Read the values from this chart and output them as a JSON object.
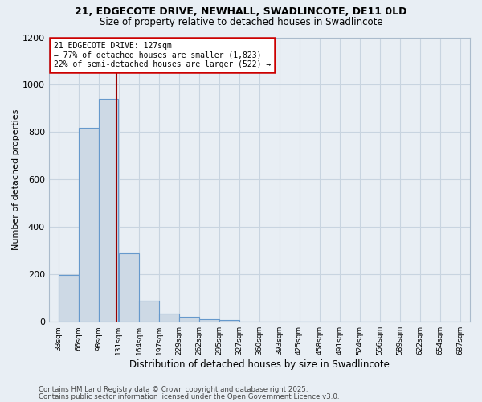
{
  "title1": "21, EDGECOTE DRIVE, NEWHALL, SWADLINCOTE, DE11 0LD",
  "title2": "Size of property relative to detached houses in Swadlincote",
  "xlabel": "Distribution of detached houses by size in Swadlincote",
  "ylabel": "Number of detached properties",
  "bar_values": [
    197,
    820,
    940,
    290,
    90,
    35,
    20,
    10,
    7,
    0,
    0,
    0,
    0,
    0,
    0,
    0,
    0,
    0,
    0,
    0
  ],
  "bar_left_edges": [
    33,
    66,
    98,
    131,
    164,
    197,
    229,
    262,
    295,
    327,
    360,
    393,
    425,
    458,
    491,
    524,
    556,
    589,
    622,
    654
  ],
  "bin_width": 33,
  "bar_color": "#cdd9e5",
  "bar_edgecolor": "#6699cc",
  "property_line_x": 127,
  "property_line_color": "#990000",
  "annotation_title": "21 EDGECOTE DRIVE: 127sqm",
  "annotation_line1": "← 77% of detached houses are smaller (1,823)",
  "annotation_line2": "22% of semi-detached houses are larger (522) →",
  "annotation_box_color": "#ffffff",
  "annotation_border_color": "#cc0000",
  "x_tick_labels": [
    "33sqm",
    "66sqm",
    "98sqm",
    "131sqm",
    "164sqm",
    "197sqm",
    "229sqm",
    "262sqm",
    "295sqm",
    "327sqm",
    "360sqm",
    "393sqm",
    "425sqm",
    "458sqm",
    "491sqm",
    "524sqm",
    "556sqm",
    "589sqm",
    "622sqm",
    "654sqm",
    "687sqm"
  ],
  "x_tick_positions": [
    33,
    66,
    98,
    131,
    164,
    197,
    229,
    262,
    295,
    327,
    360,
    393,
    425,
    458,
    491,
    524,
    556,
    589,
    622,
    654,
    687
  ],
  "ylim": [
    0,
    1200
  ],
  "xlim": [
    17,
    703
  ],
  "yticks": [
    0,
    200,
    400,
    600,
    800,
    1000,
    1200
  ],
  "grid_color": "#c8d4e0",
  "background_color": "#e8eef4",
  "footer1": "Contains HM Land Registry data © Crown copyright and database right 2025.",
  "footer2": "Contains public sector information licensed under the Open Government Licence v3.0."
}
